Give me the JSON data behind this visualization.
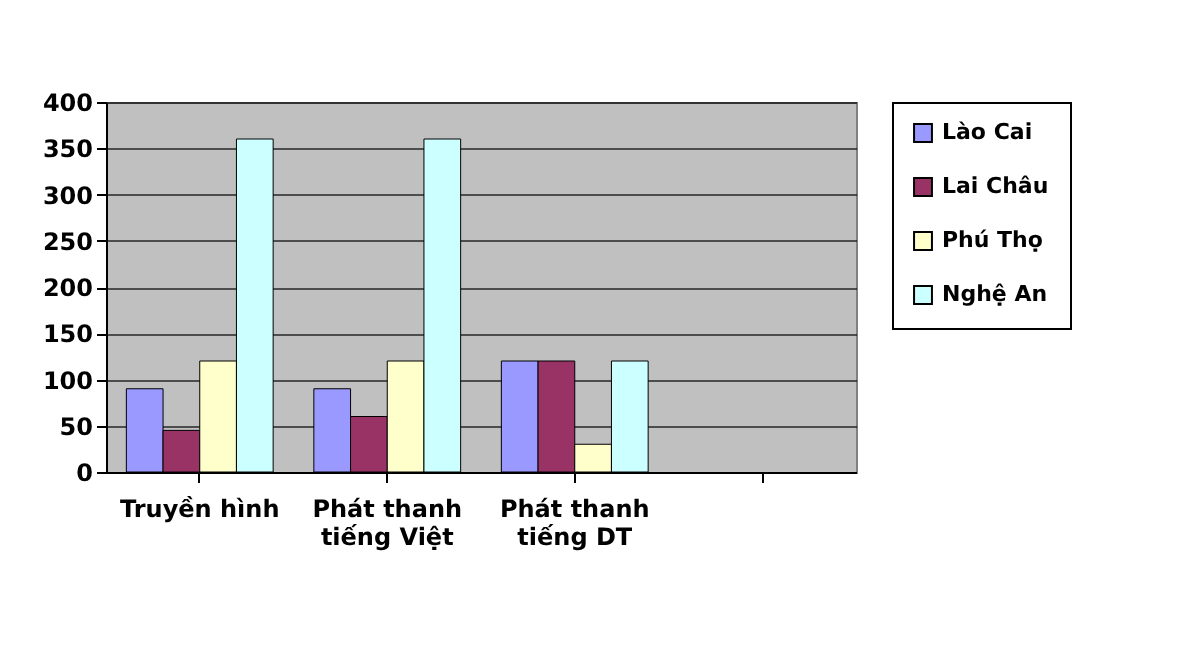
{
  "chart_data": {
    "type": "bar",
    "categories": [
      "Truyền hình",
      "Phát thanh tiếng Việt",
      "Phát thanh tiếng DT",
      null
    ],
    "series": [
      {
        "name": "Lào Cai",
        "color": "#9999ff",
        "values": [
          90,
          90,
          120,
          null
        ]
      },
      {
        "name": "Lai Châu",
        "color": "#993366",
        "values": [
          45,
          60,
          120,
          null
        ]
      },
      {
        "name": "Phú Thọ",
        "color": "#ffffcc",
        "values": [
          120,
          120,
          30,
          null
        ]
      },
      {
        "name": "Nghệ An",
        "color": "#ccffff",
        "values": [
          360,
          360,
          120,
          null
        ]
      }
    ],
    "ylim": [
      0,
      400
    ],
    "yticks": [
      0,
      50,
      100,
      150,
      200,
      250,
      300,
      350,
      400
    ],
    "grid": "y",
    "legend": "right"
  }
}
